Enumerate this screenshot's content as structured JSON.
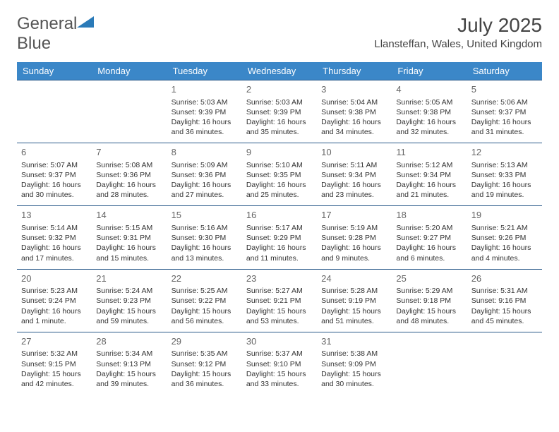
{
  "logo": {
    "text1": "General",
    "text2": "Blue"
  },
  "title": "July 2025",
  "location": "Llansteffan, Wales, United Kingdom",
  "colors": {
    "header_bg": "#3b87c8",
    "header_text": "#ffffff",
    "row_border": "#2a5a8a",
    "logo_blue": "#2a7ab8",
    "text": "#333333",
    "daynum": "#666666"
  },
  "weekdays": [
    "Sunday",
    "Monday",
    "Tuesday",
    "Wednesday",
    "Thursday",
    "Friday",
    "Saturday"
  ],
  "weeks": [
    [
      null,
      null,
      {
        "n": "1",
        "sr": "5:03 AM",
        "ss": "9:39 PM",
        "dl": "16 hours and 36 minutes."
      },
      {
        "n": "2",
        "sr": "5:03 AM",
        "ss": "9:39 PM",
        "dl": "16 hours and 35 minutes."
      },
      {
        "n": "3",
        "sr": "5:04 AM",
        "ss": "9:38 PM",
        "dl": "16 hours and 34 minutes."
      },
      {
        "n": "4",
        "sr": "5:05 AM",
        "ss": "9:38 PM",
        "dl": "16 hours and 32 minutes."
      },
      {
        "n": "5",
        "sr": "5:06 AM",
        "ss": "9:37 PM",
        "dl": "16 hours and 31 minutes."
      }
    ],
    [
      {
        "n": "6",
        "sr": "5:07 AM",
        "ss": "9:37 PM",
        "dl": "16 hours and 30 minutes."
      },
      {
        "n": "7",
        "sr": "5:08 AM",
        "ss": "9:36 PM",
        "dl": "16 hours and 28 minutes."
      },
      {
        "n": "8",
        "sr": "5:09 AM",
        "ss": "9:36 PM",
        "dl": "16 hours and 27 minutes."
      },
      {
        "n": "9",
        "sr": "5:10 AM",
        "ss": "9:35 PM",
        "dl": "16 hours and 25 minutes."
      },
      {
        "n": "10",
        "sr": "5:11 AM",
        "ss": "9:34 PM",
        "dl": "16 hours and 23 minutes."
      },
      {
        "n": "11",
        "sr": "5:12 AM",
        "ss": "9:34 PM",
        "dl": "16 hours and 21 minutes."
      },
      {
        "n": "12",
        "sr": "5:13 AM",
        "ss": "9:33 PM",
        "dl": "16 hours and 19 minutes."
      }
    ],
    [
      {
        "n": "13",
        "sr": "5:14 AM",
        "ss": "9:32 PM",
        "dl": "16 hours and 17 minutes."
      },
      {
        "n": "14",
        "sr": "5:15 AM",
        "ss": "9:31 PM",
        "dl": "16 hours and 15 minutes."
      },
      {
        "n": "15",
        "sr": "5:16 AM",
        "ss": "9:30 PM",
        "dl": "16 hours and 13 minutes."
      },
      {
        "n": "16",
        "sr": "5:17 AM",
        "ss": "9:29 PM",
        "dl": "16 hours and 11 minutes."
      },
      {
        "n": "17",
        "sr": "5:19 AM",
        "ss": "9:28 PM",
        "dl": "16 hours and 9 minutes."
      },
      {
        "n": "18",
        "sr": "5:20 AM",
        "ss": "9:27 PM",
        "dl": "16 hours and 6 minutes."
      },
      {
        "n": "19",
        "sr": "5:21 AM",
        "ss": "9:26 PM",
        "dl": "16 hours and 4 minutes."
      }
    ],
    [
      {
        "n": "20",
        "sr": "5:23 AM",
        "ss": "9:24 PM",
        "dl": "16 hours and 1 minute."
      },
      {
        "n": "21",
        "sr": "5:24 AM",
        "ss": "9:23 PM",
        "dl": "15 hours and 59 minutes."
      },
      {
        "n": "22",
        "sr": "5:25 AM",
        "ss": "9:22 PM",
        "dl": "15 hours and 56 minutes."
      },
      {
        "n": "23",
        "sr": "5:27 AM",
        "ss": "9:21 PM",
        "dl": "15 hours and 53 minutes."
      },
      {
        "n": "24",
        "sr": "5:28 AM",
        "ss": "9:19 PM",
        "dl": "15 hours and 51 minutes."
      },
      {
        "n": "25",
        "sr": "5:29 AM",
        "ss": "9:18 PM",
        "dl": "15 hours and 48 minutes."
      },
      {
        "n": "26",
        "sr": "5:31 AM",
        "ss": "9:16 PM",
        "dl": "15 hours and 45 minutes."
      }
    ],
    [
      {
        "n": "27",
        "sr": "5:32 AM",
        "ss": "9:15 PM",
        "dl": "15 hours and 42 minutes."
      },
      {
        "n": "28",
        "sr": "5:34 AM",
        "ss": "9:13 PM",
        "dl": "15 hours and 39 minutes."
      },
      {
        "n": "29",
        "sr": "5:35 AM",
        "ss": "9:12 PM",
        "dl": "15 hours and 36 minutes."
      },
      {
        "n": "30",
        "sr": "5:37 AM",
        "ss": "9:10 PM",
        "dl": "15 hours and 33 minutes."
      },
      {
        "n": "31",
        "sr": "5:38 AM",
        "ss": "9:09 PM",
        "dl": "15 hours and 30 minutes."
      },
      null,
      null
    ]
  ],
  "labels": {
    "sunrise": "Sunrise:",
    "sunset": "Sunset:",
    "daylight": "Daylight:"
  }
}
